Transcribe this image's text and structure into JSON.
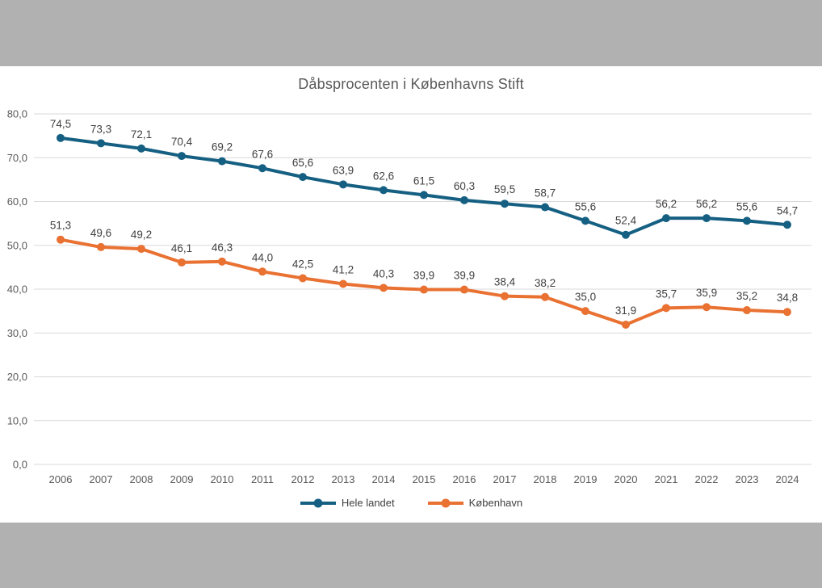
{
  "frame": {
    "background_color": "#b1b1b1",
    "canvas_color": "#ffffff"
  },
  "chart_data": {
    "type": "line",
    "title": "Dåbsprocenten i Københavns Stift",
    "title_color": "#595959",
    "categories": [
      "2006",
      "2007",
      "2008",
      "2009",
      "2010",
      "2011",
      "2012",
      "2013",
      "2014",
      "2015",
      "2016",
      "2017",
      "2018",
      "2019",
      "2020",
      "2021",
      "2022",
      "2023",
      "2024"
    ],
    "series": [
      {
        "name": "Hele landet",
        "color": "#156082",
        "values": [
          74.5,
          73.3,
          72.1,
          70.4,
          69.2,
          67.6,
          65.6,
          63.9,
          62.6,
          61.5,
          60.3,
          59.5,
          58.7,
          55.6,
          52.4,
          56.2,
          56.2,
          55.6,
          54.7
        ],
        "labels": [
          "74,5",
          "73,3",
          "72,1",
          "70,4",
          "69,2",
          "67,6",
          "65,6",
          "63,9",
          "62,6",
          "61,5",
          "60,3",
          "59,5",
          "58,7",
          "55,6",
          "52,4",
          "56,2",
          "56,2",
          "55,6",
          "54,7"
        ]
      },
      {
        "name": "København",
        "color": "#E97132",
        "values": [
          51.3,
          49.6,
          49.2,
          46.1,
          46.3,
          44.0,
          42.5,
          41.2,
          40.3,
          39.9,
          39.9,
          38.4,
          38.2,
          35.0,
          31.9,
          35.7,
          35.9,
          35.2,
          34.8
        ],
        "labels": [
          "51,3",
          "49,6",
          "49,2",
          "46,1",
          "46,3",
          "44,0",
          "42,5",
          "41,2",
          "40,3",
          "39,9",
          "39,9",
          "38,4",
          "38,2",
          "35,0",
          "31,9",
          "35,7",
          "35,9",
          "35,2",
          "34,8"
        ]
      }
    ],
    "ylim": [
      0,
      80
    ],
    "ytick_step": 10,
    "ytick_labels": [
      "0,0",
      "10,0",
      "20,0",
      "30,0",
      "40,0",
      "50,0",
      "60,0",
      "70,0",
      "80,0"
    ],
    "grid": "horizontal",
    "gridline_color": "#d9d9d9",
    "axis_label_color": "#595959",
    "data_label_color": "#404040",
    "legend_position": "bottom",
    "legend_text_color": "#404040"
  }
}
